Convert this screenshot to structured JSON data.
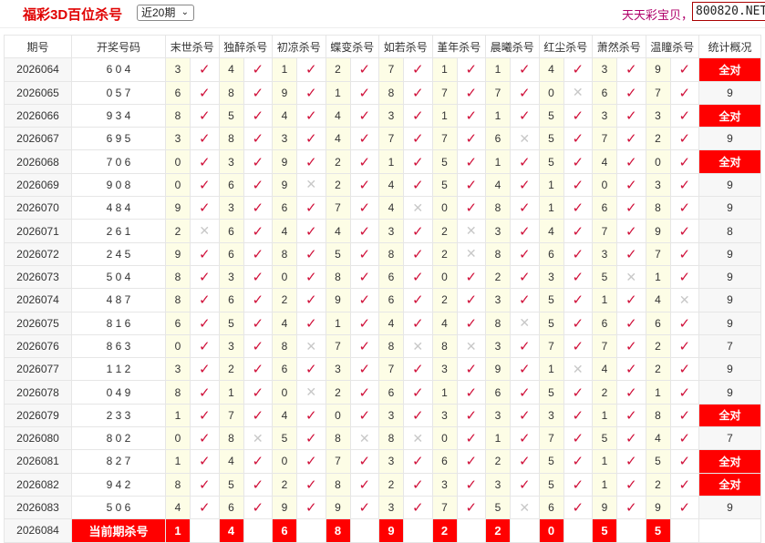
{
  "header": {
    "title": "福彩3D百位杀号",
    "period_select": "近20期",
    "slogan": "天天彩宝贝，",
    "site": "800820.NET"
  },
  "columns": [
    "期号",
    "开奖号码",
    "末世杀号",
    "独醉杀号",
    "初凉杀号",
    "蝶变杀号",
    "如若杀号",
    "堇年杀号",
    "晨曦杀号",
    "红尘杀号",
    "萧然杀号",
    "温瞳杀号",
    "统计概况"
  ],
  "colors": {
    "accent": "#ff0000",
    "check": "#d0103a",
    "cross": "#c8c8c8",
    "num_bg": "#fdfde6"
  },
  "rows": [
    {
      "issue": "2026064",
      "draw": "6 0 4",
      "kills": [
        "3",
        "4",
        "1",
        "2",
        "7",
        "1",
        "1",
        "4",
        "3",
        "9"
      ],
      "hits": [
        1,
        1,
        1,
        1,
        1,
        1,
        1,
        1,
        1,
        1
      ],
      "stat": "全对"
    },
    {
      "issue": "2026065",
      "draw": "0 5 7",
      "kills": [
        "6",
        "8",
        "9",
        "1",
        "8",
        "7",
        "7",
        "0",
        "6",
        "7"
      ],
      "hits": [
        1,
        1,
        1,
        1,
        1,
        1,
        1,
        0,
        1,
        1
      ],
      "stat": "9"
    },
    {
      "issue": "2026066",
      "draw": "9 3 4",
      "kills": [
        "8",
        "5",
        "4",
        "4",
        "3",
        "1",
        "1",
        "5",
        "3",
        "3"
      ],
      "hits": [
        1,
        1,
        1,
        1,
        1,
        1,
        1,
        1,
        1,
        1
      ],
      "stat": "全对"
    },
    {
      "issue": "2026067",
      "draw": "6 9 5",
      "kills": [
        "3",
        "8",
        "3",
        "4",
        "7",
        "7",
        "6",
        "5",
        "7",
        "2"
      ],
      "hits": [
        1,
        1,
        1,
        1,
        1,
        1,
        0,
        1,
        1,
        1
      ],
      "stat": "9"
    },
    {
      "issue": "2026068",
      "draw": "7 0 6",
      "kills": [
        "0",
        "3",
        "9",
        "2",
        "1",
        "5",
        "1",
        "5",
        "4",
        "0"
      ],
      "hits": [
        1,
        1,
        1,
        1,
        1,
        1,
        1,
        1,
        1,
        1
      ],
      "stat": "全对"
    },
    {
      "issue": "2026069",
      "draw": "9 0 8",
      "kills": [
        "0",
        "6",
        "9",
        "2",
        "4",
        "5",
        "4",
        "1",
        "0",
        "3"
      ],
      "hits": [
        1,
        1,
        0,
        1,
        1,
        1,
        1,
        1,
        1,
        1
      ],
      "stat": "9"
    },
    {
      "issue": "2026070",
      "draw": "4 8 4",
      "kills": [
        "9",
        "3",
        "6",
        "7",
        "4",
        "0",
        "8",
        "1",
        "6",
        "8"
      ],
      "hits": [
        1,
        1,
        1,
        1,
        0,
        1,
        1,
        1,
        1,
        1
      ],
      "stat": "9"
    },
    {
      "issue": "2026071",
      "draw": "2 6 1",
      "kills": [
        "2",
        "6",
        "4",
        "4",
        "3",
        "2",
        "3",
        "4",
        "7",
        "9"
      ],
      "hits": [
        0,
        1,
        1,
        1,
        1,
        0,
        1,
        1,
        1,
        1
      ],
      "stat": "8"
    },
    {
      "issue": "2026072",
      "draw": "2 4 5",
      "kills": [
        "9",
        "6",
        "8",
        "5",
        "8",
        "2",
        "8",
        "6",
        "3",
        "7"
      ],
      "hits": [
        1,
        1,
        1,
        1,
        1,
        0,
        1,
        1,
        1,
        1
      ],
      "stat": "9"
    },
    {
      "issue": "2026073",
      "draw": "5 0 4",
      "kills": [
        "8",
        "3",
        "0",
        "8",
        "6",
        "0",
        "2",
        "3",
        "5",
        "1"
      ],
      "hits": [
        1,
        1,
        1,
        1,
        1,
        1,
        1,
        1,
        0,
        1
      ],
      "stat": "9"
    },
    {
      "issue": "2026074",
      "draw": "4 8 7",
      "kills": [
        "8",
        "6",
        "2",
        "9",
        "6",
        "2",
        "3",
        "5",
        "1",
        "4"
      ],
      "hits": [
        1,
        1,
        1,
        1,
        1,
        1,
        1,
        1,
        1,
        0
      ],
      "stat": "9"
    },
    {
      "issue": "2026075",
      "draw": "8 1 6",
      "kills": [
        "6",
        "5",
        "4",
        "1",
        "4",
        "4",
        "8",
        "5",
        "6",
        "6"
      ],
      "hits": [
        1,
        1,
        1,
        1,
        1,
        1,
        0,
        1,
        1,
        1
      ],
      "stat": "9"
    },
    {
      "issue": "2026076",
      "draw": "8 6 3",
      "kills": [
        "0",
        "3",
        "8",
        "7",
        "8",
        "8",
        "3",
        "7",
        "7",
        "2"
      ],
      "hits": [
        1,
        1,
        0,
        1,
        0,
        0,
        1,
        1,
        1,
        1
      ],
      "stat": "7"
    },
    {
      "issue": "2026077",
      "draw": "1 1 2",
      "kills": [
        "3",
        "2",
        "6",
        "3",
        "7",
        "3",
        "9",
        "1",
        "4",
        "2"
      ],
      "hits": [
        1,
        1,
        1,
        1,
        1,
        1,
        1,
        0,
        1,
        1
      ],
      "stat": "9"
    },
    {
      "issue": "2026078",
      "draw": "0 4 9",
      "kills": [
        "8",
        "1",
        "0",
        "2",
        "6",
        "1",
        "6",
        "5",
        "2",
        "1"
      ],
      "hits": [
        1,
        1,
        0,
        1,
        1,
        1,
        1,
        1,
        1,
        1
      ],
      "stat": "9"
    },
    {
      "issue": "2026079",
      "draw": "2 3 3",
      "kills": [
        "1",
        "7",
        "4",
        "0",
        "3",
        "3",
        "3",
        "3",
        "1",
        "8"
      ],
      "hits": [
        1,
        1,
        1,
        1,
        1,
        1,
        1,
        1,
        1,
        1
      ],
      "stat": "全对"
    },
    {
      "issue": "2026080",
      "draw": "8 0 2",
      "kills": [
        "0",
        "8",
        "5",
        "8",
        "8",
        "0",
        "1",
        "7",
        "5",
        "4"
      ],
      "hits": [
        1,
        0,
        1,
        0,
        0,
        1,
        1,
        1,
        1,
        1
      ],
      "stat": "7"
    },
    {
      "issue": "2026081",
      "draw": "8 2 7",
      "kills": [
        "1",
        "4",
        "0",
        "7",
        "3",
        "6",
        "2",
        "5",
        "1",
        "5"
      ],
      "hits": [
        1,
        1,
        1,
        1,
        1,
        1,
        1,
        1,
        1,
        1
      ],
      "stat": "全对"
    },
    {
      "issue": "2026082",
      "draw": "9 4 2",
      "kills": [
        "8",
        "5",
        "2",
        "8",
        "2",
        "3",
        "3",
        "5",
        "1",
        "2"
      ],
      "hits": [
        1,
        1,
        1,
        1,
        1,
        1,
        1,
        1,
        1,
        1
      ],
      "stat": "全对"
    },
    {
      "issue": "2026083",
      "draw": "5 0 6",
      "kills": [
        "4",
        "6",
        "9",
        "9",
        "3",
        "7",
        "5",
        "6",
        "9",
        "9"
      ],
      "hits": [
        1,
        1,
        1,
        1,
        1,
        1,
        0,
        1,
        1,
        1
      ],
      "stat": "9"
    }
  ],
  "current": {
    "issue": "2026084",
    "label": "当前期杀号",
    "kills": [
      "1",
      "4",
      "6",
      "8",
      "9",
      "2",
      "2",
      "0",
      "5",
      "5"
    ]
  },
  "marks": {
    "hit": "✓",
    "miss": "✕"
  }
}
